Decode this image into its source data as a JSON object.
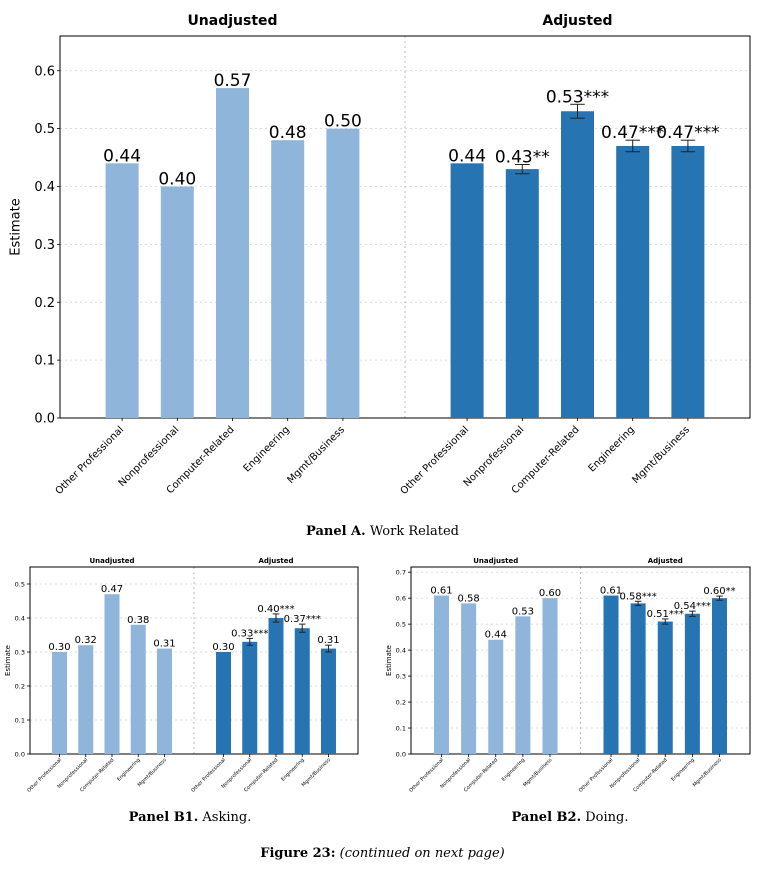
{
  "captions": {
    "panelA_label": "Panel A.",
    "panelA_text": "Work Related",
    "panelB1_label": "Panel B1.",
    "panelB1_text": "Asking.",
    "panelB2_label": "Panel B2.",
    "panelB2_text": "Doing.",
    "figure_label": "Figure 23:",
    "figure_text": "(continued on next page)"
  },
  "colors": {
    "unadjusted": "#8fb5db",
    "adjusted": "#2774b3"
  },
  "chart_data": [
    {
      "type": "bar",
      "panel": "A",
      "ylabel": "Estimate",
      "ylim": [
        0,
        0.66
      ],
      "yticks": [
        "0.0",
        "0.1",
        "0.2",
        "0.3",
        "0.4",
        "0.5",
        "0.6"
      ],
      "grid": true,
      "categories": [
        "Other Professional",
        "Nonprofessional",
        "Computer-Related",
        "Engineering",
        "Mgmt/Business"
      ],
      "series": [
        {
          "name": "Unadjusted",
          "values": [
            0.44,
            0.4,
            0.57,
            0.48,
            0.5
          ],
          "labels": [
            "0.44",
            "0.40",
            "0.57",
            "0.48",
            "0.50"
          ]
        },
        {
          "name": "Adjusted",
          "values": [
            0.44,
            0.43,
            0.53,
            0.47,
            0.47
          ],
          "errors": [
            0,
            0.008,
            0.012,
            0.01,
            0.01
          ],
          "labels": [
            "0.44",
            "0.43**",
            "0.53***",
            "0.47***",
            "0.47***"
          ]
        }
      ]
    },
    {
      "type": "bar",
      "panel": "B1",
      "ylabel": "Estimate",
      "ylim": [
        0,
        0.55
      ],
      "yticks": [
        "0.0",
        "0.1",
        "0.2",
        "0.3",
        "0.4",
        "0.5"
      ],
      "grid": true,
      "categories": [
        "Other Professional",
        "Nonprofessional",
        "Computer-Related",
        "Engineering",
        "Mgmt/Business"
      ],
      "series": [
        {
          "name": "Unadjusted",
          "values": [
            0.3,
            0.32,
            0.47,
            0.38,
            0.31
          ],
          "labels": [
            "0.30",
            "0.32",
            "0.47",
            "0.38",
            "0.31"
          ]
        },
        {
          "name": "Adjusted",
          "values": [
            0.3,
            0.33,
            0.4,
            0.37,
            0.31
          ],
          "errors": [
            0,
            0.01,
            0.012,
            0.012,
            0.01
          ],
          "labels": [
            "0.30",
            "0.33***",
            "0.40***",
            "0.37***",
            "0.31"
          ]
        }
      ]
    },
    {
      "type": "bar",
      "panel": "B2",
      "ylabel": "Estimate",
      "ylim": [
        0,
        0.72
      ],
      "yticks": [
        "0.0",
        "0.1",
        "0.2",
        "0.3",
        "0.4",
        "0.5",
        "0.6",
        "0.7"
      ],
      "grid": true,
      "categories": [
        "Other Professional",
        "Nonprofessional",
        "Computer-Related",
        "Engineering",
        "Mgmt/Business"
      ],
      "series": [
        {
          "name": "Unadjusted",
          "values": [
            0.61,
            0.58,
            0.44,
            0.53,
            0.6
          ],
          "labels": [
            "0.61",
            "0.58",
            "0.44",
            "0.53",
            "0.60"
          ]
        },
        {
          "name": "Adjusted",
          "values": [
            0.61,
            0.58,
            0.51,
            0.54,
            0.6
          ],
          "errors": [
            0,
            0.008,
            0.01,
            0.01,
            0.008
          ],
          "labels": [
            "0.61",
            "0.58***",
            "0.51***",
            "0.54***",
            "0.60**"
          ]
        }
      ]
    }
  ]
}
